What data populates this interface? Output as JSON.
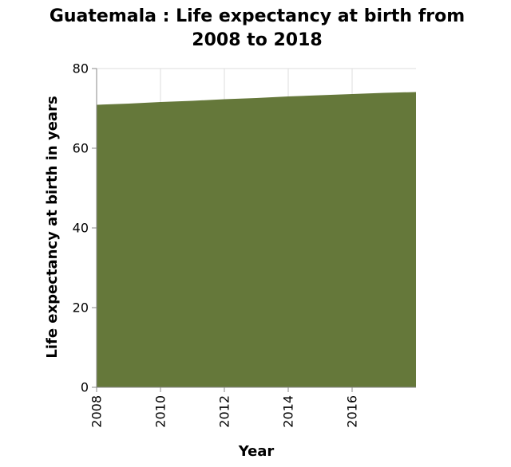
{
  "chart_data": {
    "type": "area",
    "title_lines": [
      "Guatemala : Life expectancy at birth from",
      "2008 to 2018"
    ],
    "xlabel": "Year",
    "ylabel": "Life expectancy at birth in years",
    "x": [
      2008,
      2009,
      2010,
      2011,
      2012,
      2013,
      2014,
      2015,
      2016,
      2017,
      2018
    ],
    "series": [
      {
        "values": [
          70.9,
          71.2,
          71.6,
          71.9,
          72.3,
          72.6,
          73.0,
          73.3,
          73.6,
          73.9,
          74.1
        ],
        "color": "#65783a"
      }
    ],
    "xlim": [
      2008,
      2018
    ],
    "ylim": [
      0,
      80
    ],
    "x_ticks": [
      "2008",
      "2010",
      "2012",
      "2014",
      "2016"
    ],
    "y_ticks": [
      "0",
      "20",
      "40",
      "60",
      "80"
    ],
    "grid": true,
    "legend": "none"
  }
}
